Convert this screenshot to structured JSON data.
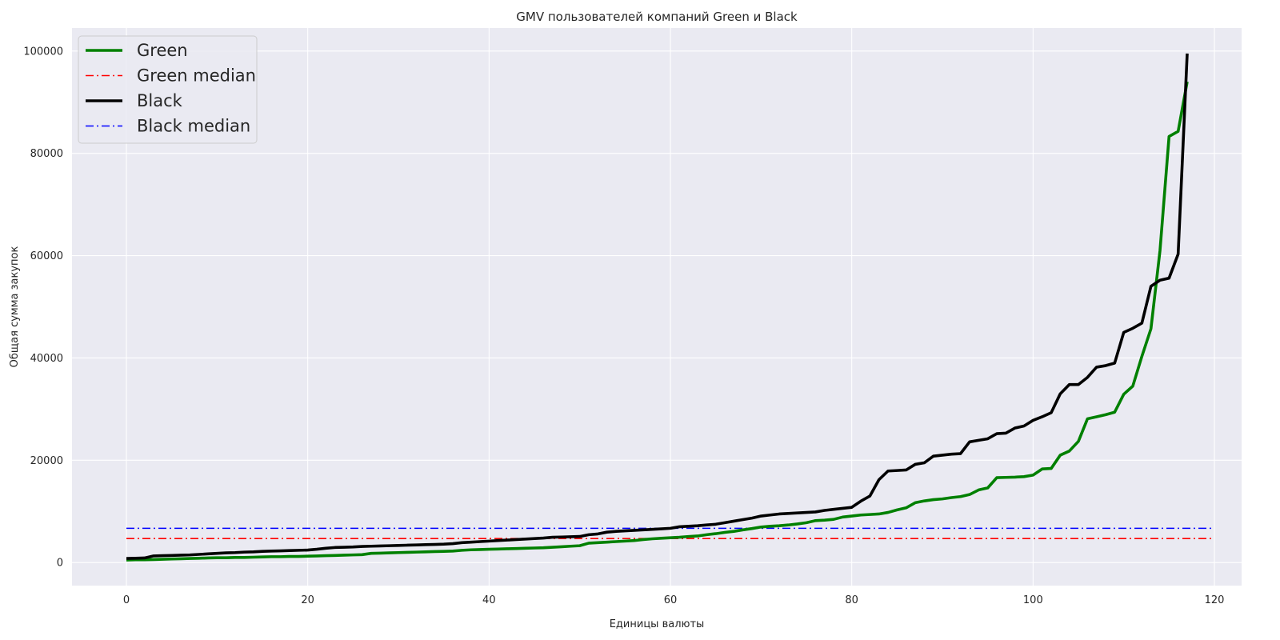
{
  "chart_data": {
    "type": "line",
    "title": "GMV пользователей компаний Green и Black",
    "xlabel": "Единицы валюты",
    "ylabel": "Общая сумма закупок",
    "xlim": [
      -6,
      123
    ],
    "ylim": [
      -4500,
      104500
    ],
    "xticks": [
      0,
      20,
      40,
      60,
      80,
      100,
      120
    ],
    "xtick_labels": [
      "0",
      "20",
      "40",
      "60",
      "80",
      "100",
      "120"
    ],
    "yticks": [
      0,
      20000,
      40000,
      60000,
      80000,
      100000
    ],
    "ytick_labels": [
      "0",
      "20000",
      "40000",
      "60000",
      "80000",
      "100000"
    ],
    "grid": true,
    "legend_position": "upper-left",
    "colors": {
      "plot_background": "#EAEAF2",
      "grid": "#FFFFFF",
      "green": "#008000",
      "black": "#000000",
      "green_median": "#FF0000",
      "black_median": "#0000FF"
    },
    "series": [
      {
        "name": "Green",
        "style": "solid",
        "color": "#008000",
        "x": [
          0,
          1,
          2,
          3,
          4,
          5,
          6,
          7,
          8,
          9,
          10,
          11,
          12,
          13,
          14,
          15,
          16,
          17,
          18,
          19,
          20,
          21,
          22,
          23,
          24,
          25,
          26,
          27,
          28,
          29,
          30,
          31,
          32,
          33,
          34,
          35,
          36,
          37,
          38,
          39,
          40,
          41,
          42,
          43,
          44,
          45,
          46,
          47,
          48,
          49,
          50,
          51,
          52,
          53,
          54,
          55,
          56,
          57,
          58,
          59,
          60,
          61,
          62,
          63,
          64,
          65,
          66,
          67,
          68,
          69,
          70,
          71,
          72,
          73,
          74,
          75,
          76,
          77,
          78,
          79,
          80,
          81,
          82,
          83,
          84,
          85,
          86,
          87,
          88,
          89,
          90,
          91,
          92,
          93,
          94,
          95,
          96,
          97,
          98,
          99,
          100,
          101,
          102,
          103,
          104,
          105,
          106,
          107,
          108,
          109,
          110,
          111,
          112,
          113,
          114,
          115,
          116,
          117
        ],
        "values": [
          500,
          550,
          550,
          600,
          650,
          700,
          750,
          800,
          850,
          900,
          950,
          950,
          1000,
          1000,
          1050,
          1100,
          1150,
          1150,
          1200,
          1200,
          1250,
          1300,
          1350,
          1400,
          1450,
          1500,
          1550,
          1800,
          1850,
          1900,
          1950,
          2000,
          2050,
          2100,
          2150,
          2200,
          2250,
          2400,
          2500,
          2550,
          2600,
          2650,
          2700,
          2750,
          2800,
          2850,
          2900,
          3000,
          3100,
          3200,
          3300,
          3800,
          3900,
          4000,
          4100,
          4200,
          4300,
          4500,
          4650,
          4750,
          4850,
          4950,
          5100,
          5200,
          5450,
          5650,
          5900,
          6100,
          6400,
          6650,
          6950,
          7100,
          7200,
          7350,
          7550,
          7800,
          8200,
          8300,
          8450,
          8900,
          9100,
          9300,
          9400,
          9500,
          9800,
          10300,
          10700,
          11700,
          12050,
          12300,
          12450,
          12700,
          12900,
          13300,
          14200,
          14600,
          16600,
          16650,
          16700,
          16800,
          17100,
          18300,
          18400,
          21000,
          21800,
          23700,
          28100,
          28500,
          28900,
          29400,
          32900,
          34500,
          40300,
          45700,
          61000,
          83300,
          84300,
          94000
        ]
      },
      {
        "name": "Green median",
        "style": "dashdot",
        "color": "#FF0000",
        "x": [
          0,
          120
        ],
        "values": [
          4700,
          4700
        ]
      },
      {
        "name": "Black",
        "style": "solid",
        "color": "#000000",
        "x": [
          0,
          1,
          2,
          3,
          4,
          5,
          6,
          7,
          8,
          9,
          10,
          11,
          12,
          13,
          14,
          15,
          16,
          17,
          18,
          19,
          20,
          21,
          22,
          23,
          24,
          25,
          26,
          27,
          28,
          29,
          30,
          31,
          32,
          33,
          34,
          35,
          36,
          37,
          38,
          39,
          40,
          41,
          42,
          43,
          44,
          45,
          46,
          47,
          48,
          49,
          50,
          51,
          52,
          53,
          54,
          55,
          56,
          57,
          58,
          59,
          60,
          61,
          62,
          63,
          64,
          65,
          66,
          67,
          68,
          69,
          70,
          71,
          72,
          73,
          74,
          75,
          76,
          77,
          78,
          79,
          80,
          81,
          82,
          83,
          84,
          85,
          86,
          87,
          88,
          89,
          90,
          91,
          92,
          93,
          94,
          95,
          96,
          97,
          98,
          99,
          100,
          101,
          102,
          103,
          104,
          105,
          106,
          107,
          108,
          109,
          110,
          111,
          112,
          113,
          114,
          115,
          116,
          117
        ],
        "values": [
          800,
          850,
          900,
          1300,
          1350,
          1400,
          1450,
          1500,
          1600,
          1700,
          1800,
          1900,
          1950,
          2050,
          2100,
          2200,
          2250,
          2300,
          2350,
          2400,
          2450,
          2600,
          2800,
          2950,
          3000,
          3050,
          3150,
          3200,
          3250,
          3300,
          3350,
          3400,
          3450,
          3500,
          3550,
          3600,
          3700,
          3900,
          4000,
          4100,
          4200,
          4300,
          4400,
          4500,
          4600,
          4700,
          4800,
          4950,
          5000,
          5050,
          5100,
          5450,
          5600,
          5950,
          6100,
          6200,
          6300,
          6400,
          6500,
          6600,
          6700,
          7000,
          7100,
          7200,
          7350,
          7500,
          7800,
          8100,
          8400,
          8700,
          9100,
          9300,
          9500,
          9600,
          9700,
          9800,
          9900,
          10200,
          10400,
          10600,
          10800,
          12000,
          13000,
          16200,
          17900,
          18000,
          18100,
          19200,
          19500,
          20800,
          21000,
          21200,
          21300,
          23600,
          23900,
          24200,
          25200,
          25300,
          26300,
          26700,
          27800,
          28500,
          29300,
          33000,
          34800,
          34800,
          36200,
          38200,
          38500,
          39000,
          45000,
          45800,
          46800,
          54000,
          55200,
          55600,
          60300,
          99500
        ]
      },
      {
        "name": "Black median",
        "style": "dashdot",
        "color": "#0000FF",
        "x": [
          0,
          120
        ],
        "values": [
          6700,
          6700
        ]
      }
    ]
  }
}
